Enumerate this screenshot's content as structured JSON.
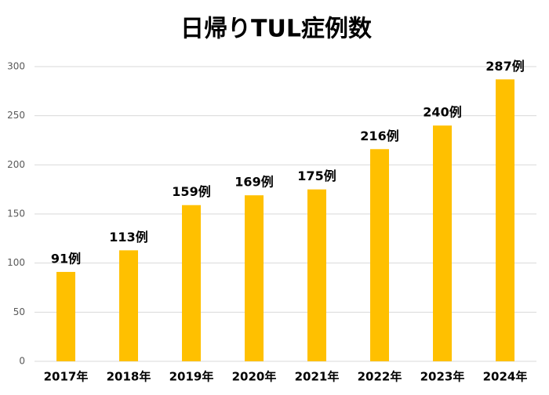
{
  "chart_data": {
    "type": "bar",
    "title": "日帰りTUL症例数",
    "categories": [
      "2017年",
      "2018年",
      "2019年",
      "2020年",
      "2021年",
      "2022年",
      "2023年",
      "2024年"
    ],
    "values": [
      91,
      113,
      159,
      169,
      175,
      216,
      240,
      287
    ],
    "value_labels": [
      "91例",
      "113例",
      "159例",
      "169例",
      "175例",
      "216例",
      "240例",
      "287例"
    ],
    "color": "#ffc000",
    "ylim": [
      0,
      300
    ],
    "yticks": [
      0,
      50,
      100,
      150,
      200,
      250,
      300
    ],
    "grid": true
  }
}
